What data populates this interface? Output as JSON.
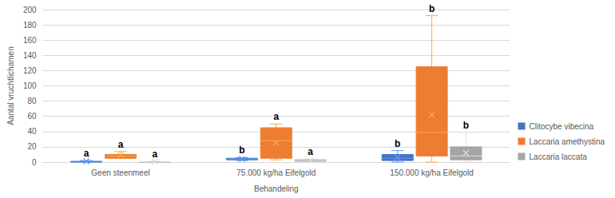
{
  "chart_data": {
    "type": "boxplot",
    "x_label": "Behandeling",
    "y_label": "Aantal vruchtlichamen",
    "categories": [
      "Geen steenmeel",
      "75.000 kg/ha Eifelgold",
      "150.000 kg/ha Eifelgold"
    ],
    "ylim": [
      0,
      200
    ],
    "yticks": [
      0,
      20,
      40,
      60,
      80,
      100,
      120,
      140,
      160,
      180,
      200
    ],
    "grid": true,
    "legend": "right",
    "series": [
      {
        "name": "Clitocybe vibecina",
        "color": "#4472c4",
        "min": [
          0,
          2,
          0
        ],
        "q1": [
          0,
          3,
          2
        ],
        "median": [
          0,
          4,
          5
        ],
        "q3": [
          1,
          5,
          10
        ],
        "max": [
          2,
          6,
          15
        ],
        "mean": [
          1,
          4,
          6
        ],
        "letters": [
          "a",
          "b",
          "b"
        ]
      },
      {
        "name": "Laccaria amethystina",
        "color": "#ed7d31",
        "min": [
          5,
          3,
          0
        ],
        "q1": [
          5,
          5,
          8
        ],
        "median": [
          8,
          28,
          39
        ],
        "q3": [
          10,
          45,
          125
        ],
        "max": [
          14,
          50,
          192
        ],
        "mean": [
          9,
          25,
          62
        ],
        "letters": [
          "a",
          "a",
          "b"
        ]
      },
      {
        "name": "Laccaria laccata",
        "color": "#a5a5a5",
        "min": [
          0,
          0,
          0
        ],
        "q1": [
          0,
          1,
          3
        ],
        "median": [
          0,
          2,
          8
        ],
        "q3": [
          0,
          3,
          20
        ],
        "max": [
          1,
          4,
          39
        ],
        "mean": [
          0.5,
          2,
          12
        ],
        "letters": [
          "a",
          "a",
          "b"
        ]
      }
    ]
  }
}
